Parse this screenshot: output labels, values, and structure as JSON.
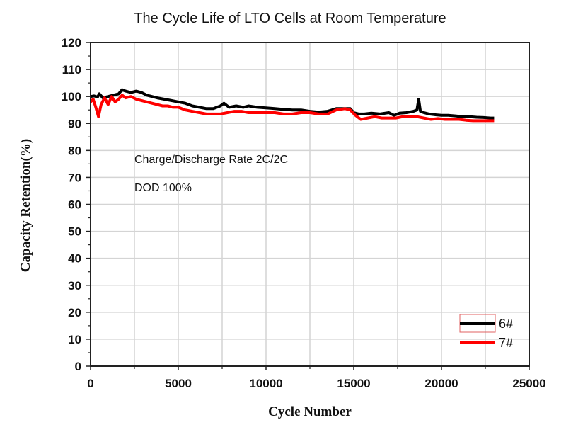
{
  "chart_data": {
    "type": "line",
    "title": "The Cycle Life of LTO Cells at Room Temperature",
    "xlabel": "Cycle Number",
    "ylabel": "Capacity Retention(%)",
    "xlim": [
      0,
      25000
    ],
    "ylim": [
      0,
      120
    ],
    "xticks": [
      0,
      5000,
      10000,
      15000,
      20000,
      25000
    ],
    "xtick_labels": [
      "0",
      "5000",
      "10000",
      "15000",
      "20000",
      "25000"
    ],
    "yticks": [
      0,
      10,
      20,
      30,
      40,
      50,
      60,
      70,
      80,
      90,
      100,
      110,
      120
    ],
    "ytick_labels": [
      "0",
      "10",
      "20",
      "30",
      "40",
      "50",
      "60",
      "70",
      "80",
      "90",
      "100",
      "110",
      "120"
    ],
    "grid": true,
    "legend_position": "bottom-right",
    "annotations": [
      "Charge/Discharge Rate 2C/2C",
      "DOD 100%"
    ],
    "series": [
      {
        "name": "6#",
        "color": "#000000",
        "x": [
          0,
          200,
          400,
          500,
          700,
          1000,
          1300,
          1600,
          1800,
          2000,
          2300,
          2600,
          2900,
          3200,
          3500,
          3800,
          4200,
          4600,
          5000,
          5400,
          5800,
          6200,
          6600,
          7000,
          7400,
          7600,
          7900,
          8300,
          8700,
          9000,
          9500,
          10000,
          10500,
          11000,
          11500,
          12000,
          12500,
          13000,
          13500,
          14000,
          14500,
          14800,
          15000,
          15300,
          15600,
          16000,
          16500,
          17000,
          17300,
          17600,
          18000,
          18400,
          18600,
          18700,
          18800,
          19000,
          19300,
          19700,
          20000,
          20400,
          20800,
          21200,
          21600,
          22000,
          22400,
          22800,
          23000
        ],
        "y": [
          100,
          100.2,
          99.8,
          101,
          99.5,
          100,
          100.5,
          101,
          102.5,
          102,
          101.5,
          102,
          101.5,
          100.5,
          100,
          99.5,
          99,
          98.5,
          98,
          97.5,
          96.5,
          96,
          95.5,
          95.5,
          96.5,
          97.5,
          96,
          96.5,
          96,
          96.5,
          96,
          95.8,
          95.5,
          95.2,
          95,
          95,
          94.5,
          94.2,
          94.5,
          95.5,
          95.5,
          95.5,
          94,
          93.5,
          93.5,
          93.8,
          93.5,
          94,
          93,
          93.8,
          94,
          94.5,
          95,
          99,
          94.5,
          94,
          93.5,
          93.2,
          93,
          93,
          92.8,
          92.5,
          92.5,
          92.3,
          92.2,
          92,
          92
        ]
      },
      {
        "name": "7#",
        "color": "#ff0000",
        "x": [
          0,
          150,
          300,
          450,
          600,
          800,
          1000,
          1200,
          1400,
          1600,
          1800,
          2000,
          2300,
          2600,
          2900,
          3200,
          3500,
          3800,
          4100,
          4400,
          4700,
          5000,
          5400,
          5800,
          6200,
          6600,
          7000,
          7400,
          7800,
          8200,
          8600,
          9000,
          9500,
          10000,
          10500,
          11000,
          11500,
          12000,
          12500,
          13000,
          13500,
          14000,
          14500,
          14800,
          15100,
          15400,
          15800,
          16200,
          16600,
          17000,
          17400,
          17800,
          18200,
          18600,
          19000,
          19400,
          19800,
          20200,
          20600,
          21000,
          21400,
          21800,
          22200,
          22600,
          23000
        ],
        "y": [
          98,
          99,
          96,
          92.5,
          97,
          99.5,
          97,
          100,
          98,
          99,
          100.5,
          99.5,
          100,
          99,
          98.5,
          98,
          97.5,
          97,
          96.5,
          96.5,
          96,
          96,
          95,
          94.5,
          94,
          93.5,
          93.5,
          93.5,
          94,
          94.5,
          94.5,
          94,
          94,
          94,
          94,
          93.5,
          93.5,
          94,
          94,
          93.5,
          93.5,
          95,
          95.5,
          95,
          93,
          91.5,
          92,
          92.5,
          92,
          92,
          92,
          92.5,
          92.5,
          92.5,
          92,
          91.5,
          91.8,
          91.5,
          91.5,
          91.5,
          91.2,
          91,
          91,
          91,
          91
        ]
      }
    ]
  }
}
